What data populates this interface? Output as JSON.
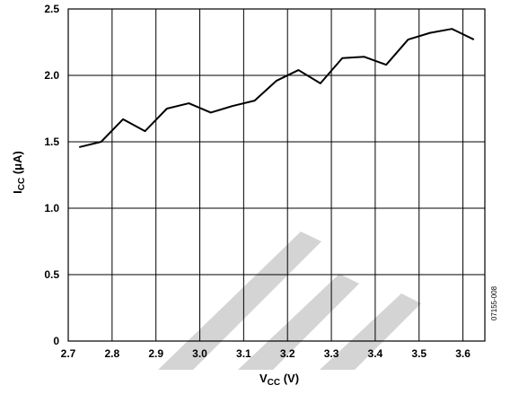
{
  "figure_id": "07155-008",
  "colors": {
    "line": "#000000",
    "grid": "#000000",
    "watermark": "#d4d4d4"
  },
  "watermark_icon": "watermark-logo",
  "chart_data": {
    "type": "line",
    "xlabel": {
      "main": "V",
      "sub": "CC",
      "unit": " (V)"
    },
    "ylabel": {
      "main": "I",
      "sub": "CC",
      "unit": " (μA)"
    },
    "xlim": [
      2.7,
      3.65
    ],
    "ylim": [
      0,
      2.5
    ],
    "xticks": [
      "2.7",
      "2.8",
      "2.9",
      "3.0",
      "3.1",
      "3.2",
      "3.3",
      "3.4",
      "3.5",
      "3.6"
    ],
    "yticks": [
      "0",
      "0.5",
      "1.0",
      "1.5",
      "2.0",
      "2.5"
    ],
    "grid": true,
    "series": [
      {
        "x": [
          2.725,
          2.775,
          2.825,
          2.875,
          2.925,
          2.975,
          3.025,
          3.075,
          3.125,
          3.175,
          3.225,
          3.275,
          3.325,
          3.375,
          3.425,
          3.475,
          3.525,
          3.575,
          3.625
        ],
        "y": [
          1.46,
          1.5,
          1.67,
          1.58,
          1.75,
          1.79,
          1.72,
          1.77,
          1.81,
          1.96,
          2.04,
          1.94,
          2.13,
          2.14,
          2.08,
          2.27,
          2.32,
          2.35,
          2.27
        ]
      }
    ]
  }
}
